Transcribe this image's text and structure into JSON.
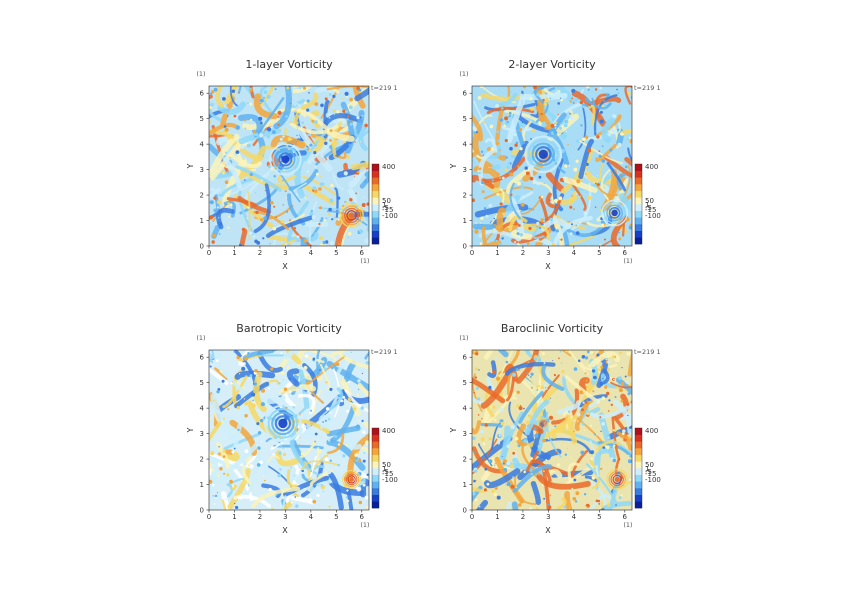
{
  "colors": {
    "cb_bands": [
      "#0a1f9c",
      "#1740c8",
      "#3a7be0",
      "#5fb2f0",
      "#8fd8f8",
      "#cdeefc",
      "#fbf3b8",
      "#f6d866",
      "#f3a63c",
      "#ea6a2a",
      "#d8321e",
      "#b0101a"
    ]
  },
  "chart_data": [
    {
      "type": "heatmap",
      "title": "1-layer Vorticity",
      "xlabel": "X",
      "ylabel": "Y",
      "xlim": [
        0,
        6.283
      ],
      "ylim": [
        0,
        6.283
      ],
      "x_ticks": [
        "0",
        "1",
        "2",
        "3",
        "4",
        "5",
        "6"
      ],
      "y_ticks": [
        "0",
        "1",
        "2",
        "3",
        "4",
        "5",
        "6"
      ],
      "axis_unit": "(1)",
      "time_label": "t=219 1",
      "colorbar_labels": [
        "400",
        "50",
        "1",
        "-5",
        "-15",
        "-100"
      ],
      "grid": false,
      "features": [
        {
          "kind": "cyclone",
          "x": 5.6,
          "y": 1.2,
          "sign": "positive",
          "radius": 0.45
        },
        {
          "kind": "vortex",
          "x": 2.85,
          "y": 3.5,
          "sign": "negative",
          "radius": 0.15
        },
        {
          "kind": "vortex",
          "x": 3.0,
          "y": 3.4,
          "sign": "negative",
          "radius": 0.6
        }
      ]
    },
    {
      "type": "heatmap",
      "title": "2-layer Vorticity",
      "xlabel": "X",
      "ylabel": "Y",
      "xlim": [
        0,
        6.283
      ],
      "ylim": [
        0,
        6.283
      ],
      "x_ticks": [
        "0",
        "1",
        "2",
        "3",
        "4",
        "5",
        "6"
      ],
      "y_ticks": [
        "0",
        "1",
        "2",
        "3",
        "4",
        "5",
        "6"
      ],
      "axis_unit": "(1)",
      "time_label": "t=219 1",
      "colorbar_labels": [
        "400",
        "50",
        "1",
        "-5",
        "-15",
        "-100"
      ],
      "grid": false,
      "features": [
        {
          "kind": "vortex",
          "x": 2.8,
          "y": 3.6,
          "sign": "negative",
          "radius": 0.7
        },
        {
          "kind": "vortex",
          "x": 5.6,
          "y": 1.3,
          "sign": "negative",
          "radius": 0.5
        }
      ]
    },
    {
      "type": "heatmap",
      "title": "Barotropic Vorticity",
      "xlabel": "X",
      "ylabel": "Y",
      "xlim": [
        0,
        6.283
      ],
      "ylim": [
        0,
        6.283
      ],
      "x_ticks": [
        "0",
        "1",
        "2",
        "3",
        "4",
        "5",
        "6"
      ],
      "y_ticks": [
        "0",
        "1",
        "2",
        "3",
        "4",
        "5",
        "6"
      ],
      "axis_unit": "(1)",
      "time_label": "t=219 1",
      "colorbar_labels": [
        "400",
        "50",
        "1",
        "-5",
        "-15",
        "-100"
      ],
      "grid": false,
      "features": [
        {
          "kind": "cyclone",
          "x": 5.6,
          "y": 1.2,
          "sign": "positive",
          "radius": 0.35
        },
        {
          "kind": "vortex",
          "x": 2.9,
          "y": 3.4,
          "sign": "negative",
          "radius": 0.7
        }
      ]
    },
    {
      "type": "heatmap",
      "title": "Baroclinic Vorticity",
      "xlabel": "X",
      "ylabel": "Y",
      "xlim": [
        0,
        6.283
      ],
      "ylim": [
        0,
        6.283
      ],
      "x_ticks": [
        "0",
        "1",
        "2",
        "3",
        "4",
        "5",
        "6"
      ],
      "y_ticks": [
        "0",
        "1",
        "2",
        "3",
        "4",
        "5",
        "6"
      ],
      "axis_unit": "(1)",
      "time_label": "t=219 1",
      "colorbar_labels": [
        "400",
        "50",
        "1",
        "-5",
        "-15",
        "-100"
      ],
      "grid": false,
      "features": [
        {
          "kind": "cyclone",
          "x": 5.7,
          "y": 1.2,
          "sign": "positive",
          "radius": 0.4
        },
        {
          "kind": "vortex",
          "x": 2.8,
          "y": 3.4,
          "sign": "positive",
          "radius": 0.2
        }
      ]
    }
  ]
}
